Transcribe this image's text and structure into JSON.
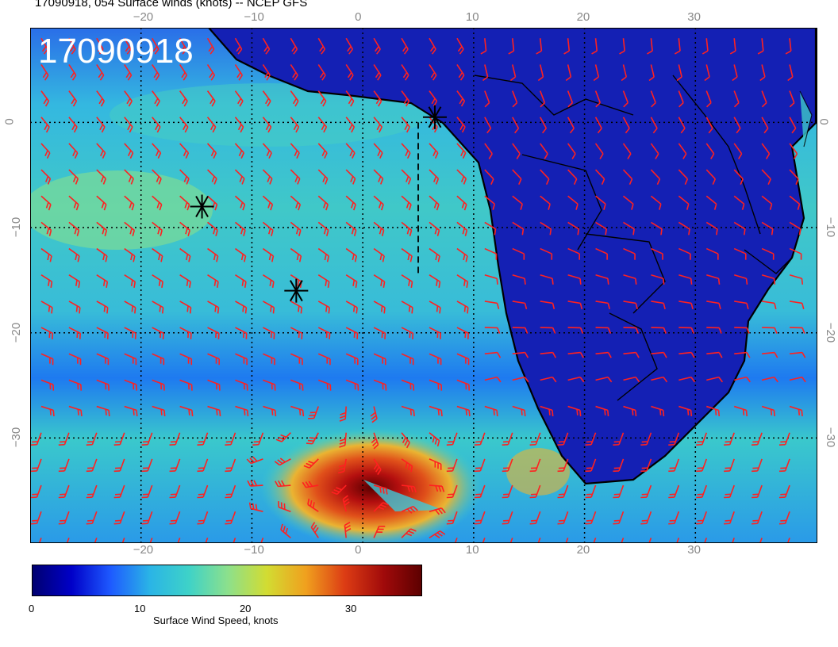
{
  "title": "17090918, 054 Surface winds (knots) -- NCEP GFS",
  "run_label": "17090918",
  "map": {
    "lon_range": [
      -30,
      41
    ],
    "lat_range": [
      9,
      -40
    ],
    "lon_ticks": [
      -20,
      -10,
      0,
      10,
      20,
      30
    ],
    "lat_ticks": [
      0,
      -10,
      -20,
      -30
    ],
    "lon_tick_labels": [
      "−20",
      "−10",
      "0",
      "10",
      "20",
      "30"
    ],
    "lat_tick_labels": [
      "0",
      "−10",
      "−20",
      "−30"
    ],
    "gridlines": "dotted",
    "barb_color": "#ff2020",
    "coast_color": "#000000",
    "markers": [
      {
        "name": "marker-1",
        "lon": 6.5,
        "lat": 0.5
      },
      {
        "name": "marker-2",
        "lon": -14.5,
        "lat": -8
      },
      {
        "name": "marker-3",
        "lon": -6,
        "lat": -16
      }
    ],
    "storm_center": {
      "lon": -1,
      "lat": -35
    }
  },
  "colorbar": {
    "title": "Surface Wind Speed, knots",
    "tick_labels": [
      "0",
      "10",
      "20",
      "30"
    ],
    "tick_values": [
      0,
      10,
      20,
      30
    ],
    "range": [
      0,
      37
    ],
    "colors": [
      "#000070",
      "#0000c8",
      "#1e5aff",
      "#2ab4e6",
      "#3ed2c8",
      "#8ce08c",
      "#d2dc32",
      "#f0a01e",
      "#dc3c14",
      "#a00a0a",
      "#5a0000"
    ]
  }
}
